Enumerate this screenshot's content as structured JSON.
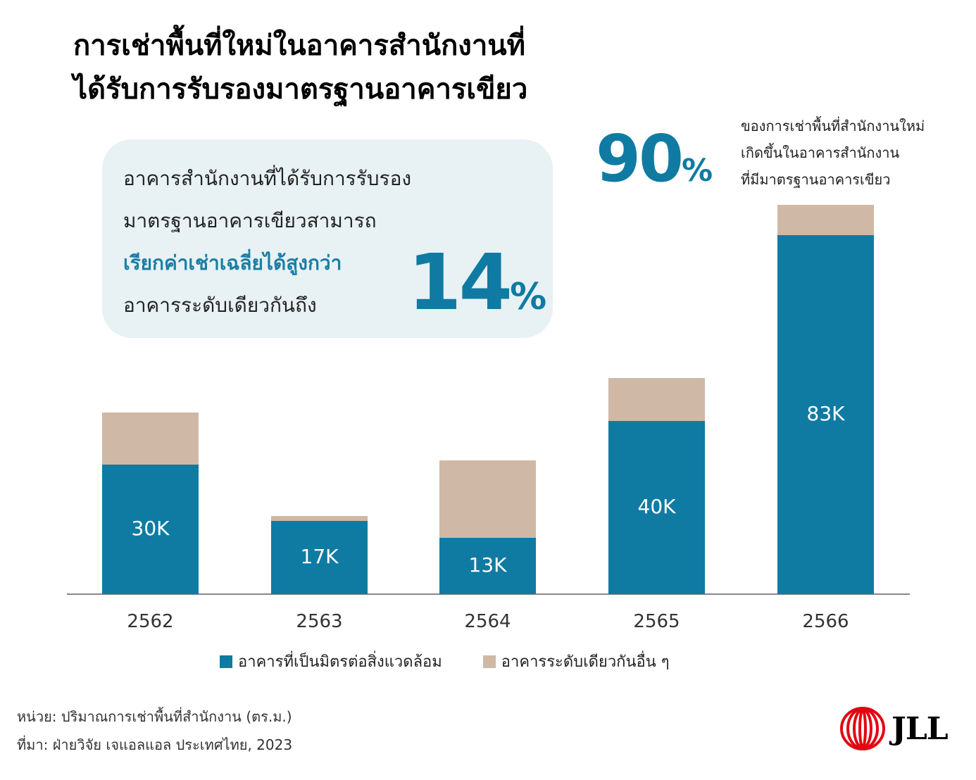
{
  "title": {
    "lines": [
      "การเช่าพื้นที่ใหม่ในอาคารสำนักงานที่",
      "ได้รับการรับรองมาตรฐานอาคารเขียว"
    ]
  },
  "callout": {
    "lines": [
      {
        "text": "อาคารสำนักงานที่ได้รับการรับรอง",
        "highlight": false
      },
      {
        "text": "มาตรฐานอาคารเขียวสามารถ",
        "highlight": false
      },
      {
        "text": "เรียกค่าเช่าเฉลี่ยได้สูงกว่า",
        "highlight": true
      },
      {
        "text": "อาคารระดับเดียวกันถึง",
        "highlight": false
      }
    ],
    "value": "14",
    "unit": "%"
  },
  "stat": {
    "value": "90",
    "unit": "%",
    "lines": [
      "ของการเช่าพื้นที่สำนักงานใหม่",
      "เกิดขึ้นในอาคารสำนักงาน",
      "ที่มีมาตรฐานอาคารเขียว"
    ]
  },
  "colors": {
    "accent": "#0f7ba3",
    "green_building": "#0f7ba3",
    "other_building": "#cfb8a6",
    "callout_bg": "#e8f1f4",
    "logo_red": "#e30613"
  },
  "chart_data": {
    "type": "bar",
    "stacked": true,
    "title": "การเช่าพื้นที่ใหม่ในอาคารสำนักงานที่ได้รับการรับรองมาตรฐานอาคารเขียว",
    "xlabel": "",
    "ylabel": "ปริมาณการเช่าพื้นที่สำนักงาน (ตร.ม.)",
    "categories": [
      "2562",
      "2563",
      "2564",
      "2565",
      "2566"
    ],
    "series": [
      {
        "name": "อาคารที่เป็นมิตรต่อสิ่งแวดล้อม",
        "color": "#0f7ba3",
        "values": [
          30000,
          17000,
          13000,
          40000,
          83000
        ],
        "labels": [
          "30K",
          "17K",
          "13K",
          "40K",
          "83K"
        ]
      },
      {
        "name": "อาคารระดับเดียวกันอื่น ๆ",
        "color": "#cfb8a6",
        "values": [
          12000,
          1000,
          18000,
          10000,
          7000
        ]
      }
    ],
    "ylim": [
      0,
      95000
    ],
    "grid": false,
    "legend_position": "bottom"
  },
  "legend": [
    {
      "label": "อาคารที่เป็นมิตรต่อสิ่งแวดล้อม",
      "color": "#0f7ba3"
    },
    {
      "label": "อาคารระดับเดียวกันอื่น ๆ",
      "color": "#cfb8a6"
    }
  ],
  "footer": {
    "unit": "หน่วย: ปริมาณการเช่าพื้นที่สำนักงาน (ตร.ม.)",
    "source": "ที่มา: ฝ่ายวิจัย เจแอลแอล ประเทศไทย, 2023"
  },
  "logo": {
    "text": "JLL"
  }
}
